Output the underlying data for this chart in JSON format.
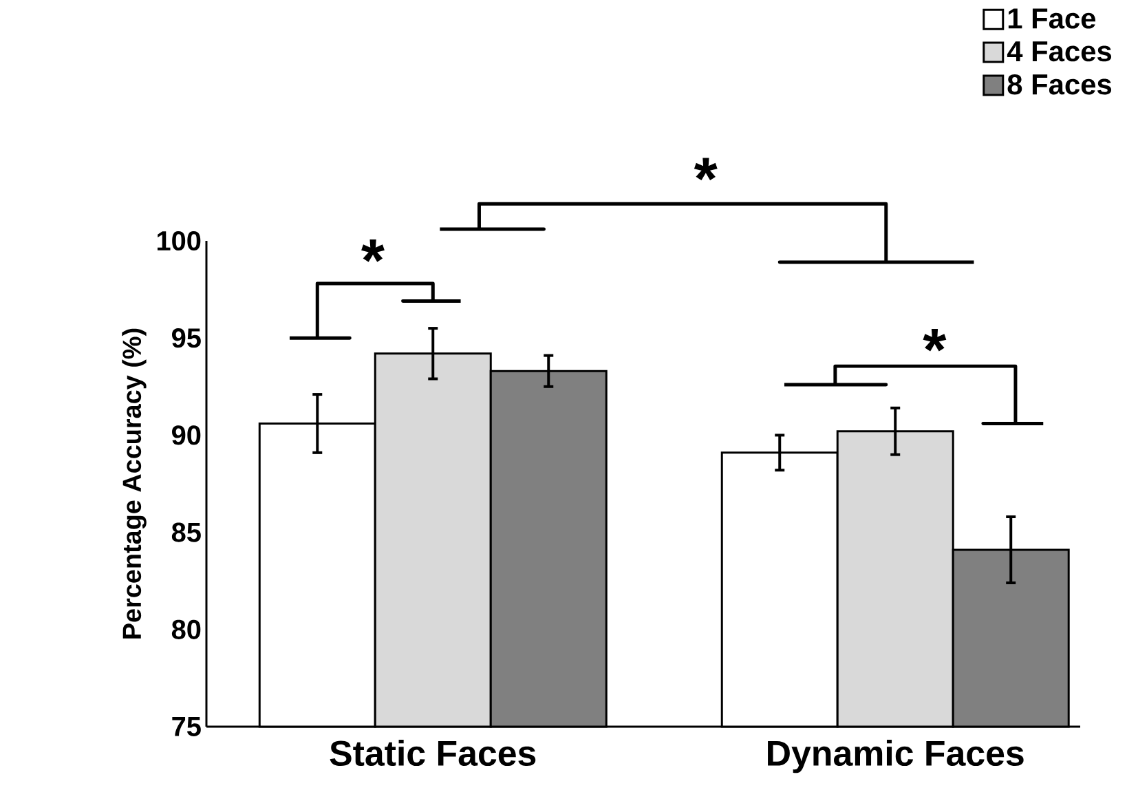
{
  "chart_data": {
    "type": "bar",
    "categories": [
      "Static Faces",
      "Dynamic Faces"
    ],
    "ylabel": "Percentage Accuracy (%)",
    "ylim": [
      75,
      100
    ],
    "yticks": [
      75,
      80,
      85,
      90,
      95,
      100
    ],
    "legend": "top right",
    "grid": false,
    "annotations": [
      "*",
      "*",
      "*"
    ],
    "series": [
      {
        "name": "1 Face",
        "color": "#ffffff",
        "values": [
          90.6,
          89.1
        ],
        "errors": [
          1.5,
          0.9
        ]
      },
      {
        "name": "4 Faces",
        "color": "#d9d9d9",
        "values": [
          94.2,
          90.2
        ],
        "errors": [
          1.3,
          1.2
        ]
      },
      {
        "name": "8 Faces",
        "color": "#808080",
        "values": [
          93.3,
          84.1
        ],
        "errors": [
          0.8,
          1.7
        ]
      }
    ]
  }
}
